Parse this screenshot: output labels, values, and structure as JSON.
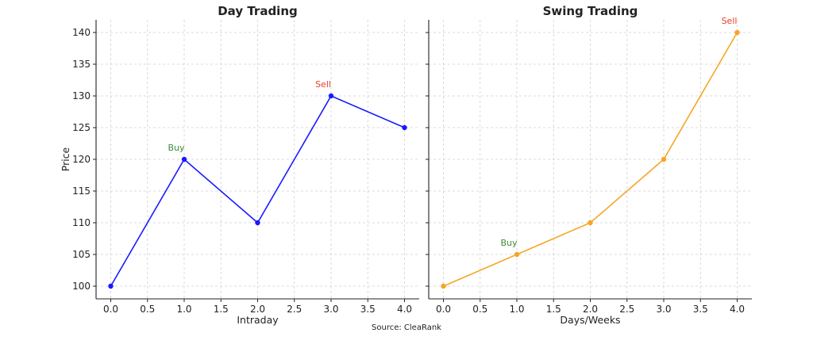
{
  "chart_data": [
    {
      "type": "line",
      "title": "Day Trading",
      "xlabel": "Intraday",
      "ylabel": "Price",
      "x": [
        0,
        1,
        2,
        3,
        4
      ],
      "series": [
        {
          "values": [
            100,
            120,
            110,
            130,
            125
          ],
          "color": "#1a1aff"
        }
      ],
      "xlim": [
        -0.2,
        4.2
      ],
      "ylim": [
        98,
        142
      ],
      "xticks": [
        "0.0",
        "0.5",
        "1.0",
        "1.5",
        "2.0",
        "2.5",
        "3.0",
        "3.5",
        "4.0"
      ],
      "yticks": [
        "100",
        "105",
        "110",
        "115",
        "120",
        "125",
        "130",
        "135",
        "140"
      ],
      "grid": true,
      "annotations": [
        {
          "text": "Buy",
          "x": 1,
          "y": 120,
          "color": "#3a8f3a"
        },
        {
          "text": "Sell",
          "x": 3,
          "y": 130,
          "color": "#e8402a"
        }
      ]
    },
    {
      "type": "line",
      "title": "Swing Trading",
      "xlabel": "Days/Weeks",
      "ylabel": "",
      "x": [
        0,
        1,
        2,
        3,
        4
      ],
      "series": [
        {
          "values": [
            100,
            105,
            110,
            120,
            140
          ],
          "color": "#f5a623"
        }
      ],
      "xlim": [
        -0.2,
        4.2
      ],
      "ylim": [
        98,
        142
      ],
      "xticks": [
        "0.0",
        "0.5",
        "1.0",
        "1.5",
        "2.0",
        "2.5",
        "3.0",
        "3.5",
        "4.0"
      ],
      "yticks": [],
      "grid": true,
      "annotations": [
        {
          "text": "Buy",
          "x": 1,
          "y": 105,
          "color": "#3a8f3a"
        },
        {
          "text": "Sell",
          "x": 4,
          "y": 140,
          "color": "#e8402a"
        }
      ]
    }
  ],
  "source": "Source: CleaRank"
}
